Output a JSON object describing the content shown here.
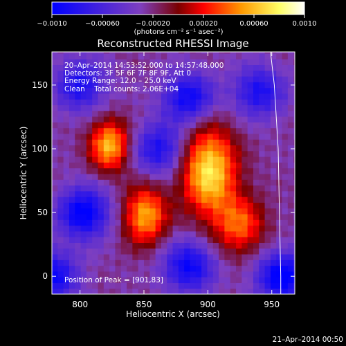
{
  "chart_data": {
    "type": "heatmap",
    "title": "Reconstructed RHESSI Image",
    "colorbar": {
      "range": [
        -0.001,
        0.001
      ],
      "ticks": [
        {
          "value": -0.001,
          "label": "−0.0010"
        },
        {
          "value": -0.0006,
          "label": "−0.00060"
        },
        {
          "value": -0.0002,
          "label": "−0.00020"
        },
        {
          "value": 0.0002,
          "label": "0.00020"
        },
        {
          "value": 0.0006,
          "label": "0.00060"
        },
        {
          "value": 0.001,
          "label": "0.0010"
        }
      ],
      "units_label": "(photons cm⁻² s⁻¹ asec⁻²)",
      "colormap": [
        "#0000ff",
        "#7e3fbf",
        "#7a0000",
        "#ff0000",
        "#ff9900",
        "#ffff66",
        "#ffffff"
      ]
    },
    "info_lines": [
      "20–Apr–2014 14:53:52.000 to 14:57:48.000",
      "Detectors: 3F 5F 6F 7F 8F 9F, Att 0",
      "Energy Range: 12.0 – 25.0 keV",
      "Clean    Total counts: 2.06E+04"
    ],
    "peak_label": "Position of Peak = [901,83]",
    "xlabel": "Heliocentric X (arcsec)",
    "ylabel": "Heliocentric Y (arcsec)",
    "xlim": [
      778,
      968
    ],
    "ylim": [
      -14,
      176
    ],
    "xticks": [
      800,
      850,
      900,
      950
    ],
    "yticks": [
      0,
      50,
      100,
      150
    ],
    "limb_arc": [
      [
        949,
        176
      ],
      [
        952,
        150
      ],
      [
        955,
        100
      ],
      [
        956,
        50
      ],
      [
        957,
        0
      ],
      [
        957,
        -14
      ]
    ],
    "sources": [
      {
        "name": "left-upper",
        "x": 823,
        "y": 103,
        "peak": 0.00085,
        "sx": 11,
        "sy": 14
      },
      {
        "name": "left-lower",
        "x": 851,
        "y": 48,
        "peak": 0.0008,
        "sx": 12,
        "sy": 16
      },
      {
        "name": "right-main",
        "x": 901,
        "y": 83,
        "peak": 0.001,
        "sx": 15,
        "sy": 24
      },
      {
        "name": "right-lower",
        "x": 925,
        "y": 40,
        "peak": 0.0006,
        "sx": 14,
        "sy": 16
      }
    ],
    "background_wells": [
      {
        "x": 803,
        "y": 50,
        "depth": -0.0008
      },
      {
        "x": 778,
        "y": 0,
        "depth": -0.0007
      },
      {
        "x": 885,
        "y": 140,
        "depth": -0.0007
      },
      {
        "x": 885,
        "y": 8,
        "depth": -0.0007
      },
      {
        "x": 958,
        "y": 0,
        "depth": -0.0008
      },
      {
        "x": 800,
        "y": 150,
        "depth": -0.0006
      },
      {
        "x": 862,
        "y": 100,
        "depth": -0.0006
      },
      {
        "x": 940,
        "y": 145,
        "depth": -0.0006
      }
    ]
  },
  "footer": {
    "timestamp": "21–Apr–2014 00:50"
  }
}
